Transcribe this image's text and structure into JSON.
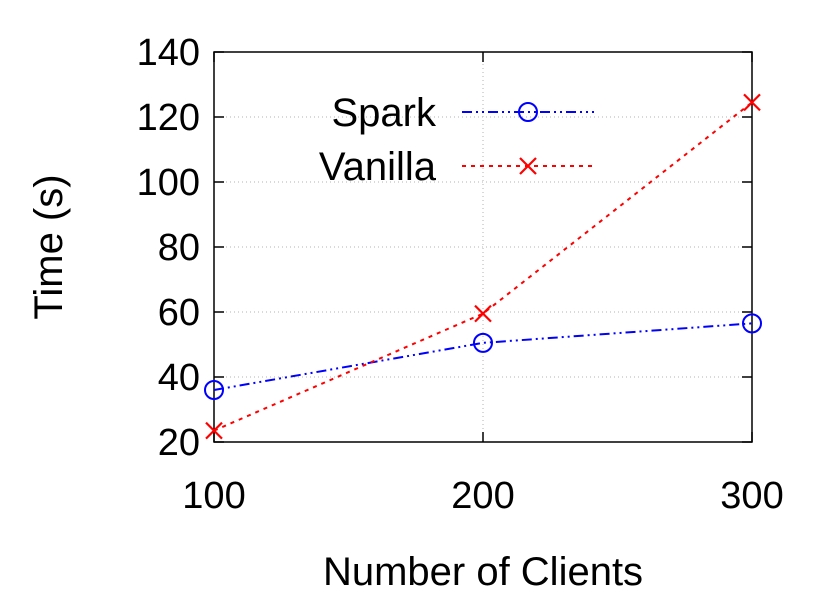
{
  "chart_data": {
    "type": "line",
    "title": "",
    "xlabel": "Number of Clients",
    "ylabel": "Time (s)",
    "x": [
      100,
      200,
      300
    ],
    "xticks": [
      "100",
      "200",
      "300"
    ],
    "xlim": [
      100,
      300
    ],
    "yticks": [
      "20",
      "40",
      "60",
      "80",
      "100",
      "120",
      "140"
    ],
    "ylim": [
      20,
      140
    ],
    "grid": true,
    "legend_position": "top-center",
    "series": [
      {
        "name": "Spark",
        "values": [
          36,
          50.5,
          56.5
        ],
        "color": "#0000ff",
        "marker": "circle",
        "line_style": "dash-dot-dot"
      },
      {
        "name": "Vanilla",
        "values": [
          23.5,
          59.5,
          124.5
        ],
        "color": "#ff0000",
        "marker": "x",
        "line_style": "dotted"
      }
    ]
  }
}
